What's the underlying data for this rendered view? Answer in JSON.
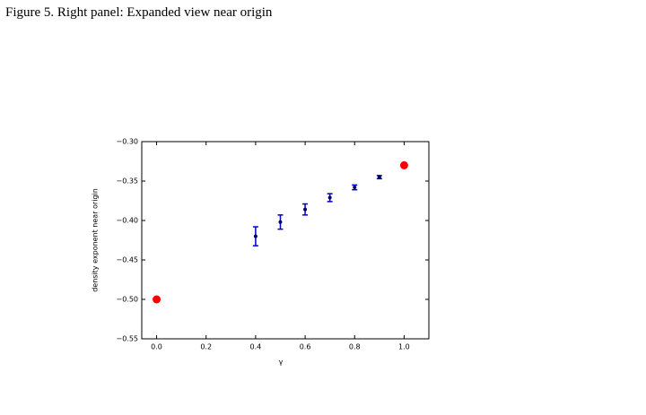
{
  "caption": "Figure 5. Right panel: Expanded view near origin",
  "chart_data": {
    "type": "errorbar",
    "xlabel": "γ",
    "ylabel": "density exponent near origin",
    "xlim": [
      -0.06,
      1.1
    ],
    "ylim": [
      -0.55,
      -0.3
    ],
    "xticks": [
      {
        "value": 0,
        "label": "0.0"
      },
      {
        "value": 0.2,
        "label": "0.2"
      },
      {
        "value": 0.4,
        "label": "0.4"
      },
      {
        "value": 0.6,
        "label": "0.6"
      },
      {
        "value": 0.8,
        "label": "0.8"
      },
      {
        "value": 1,
        "label": "1.0"
      }
    ],
    "yticks": [
      {
        "value": -0.55,
        "label": "−0.55"
      },
      {
        "value": -0.5,
        "label": "−0.50"
      },
      {
        "value": -0.45,
        "label": "−0.45"
      },
      {
        "value": -0.4,
        "label": "−0.40"
      },
      {
        "value": -0.35,
        "label": "−0.35"
      },
      {
        "value": -0.3,
        "label": "−0.30"
      }
    ],
    "series": [
      {
        "color": "#0000cc",
        "marker_color": "#000066",
        "x": [
          0.4,
          0.5,
          0.6,
          0.7,
          0.8,
          0.9
        ],
        "values": [
          -0.42,
          -0.402,
          -0.386,
          -0.371,
          -0.358,
          -0.345
        ],
        "errors": [
          0.012,
          0.009,
          0.007,
          0.005,
          0.003,
          0.002
        ]
      },
      {
        "color": "#ff0000",
        "x": [
          0,
          1
        ],
        "values": [
          -0.5,
          -0.33
        ]
      }
    ]
  }
}
